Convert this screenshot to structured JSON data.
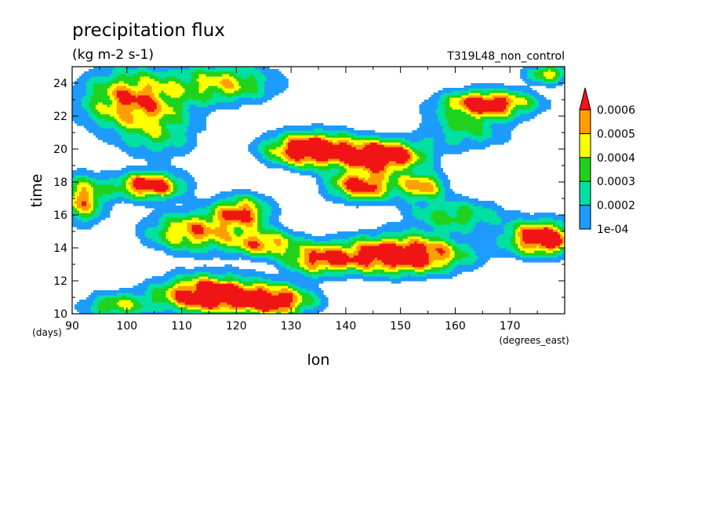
{
  "chart_data": {
    "type": "heatmap",
    "title": "precipitation flux",
    "subtitle": "(kg m-2 s-1)",
    "run_label": "T319L48_non_control",
    "xlabel": "lon",
    "x_units": "(degrees_east)",
    "ylabel": "time",
    "y_units": "(days)",
    "xlim": [
      90,
      180
    ],
    "ylim": [
      10,
      25
    ],
    "x_ticks": [
      90,
      100,
      110,
      120,
      130,
      140,
      150,
      160,
      170
    ],
    "y_ticks": [
      10,
      12,
      14,
      16,
      18,
      20,
      22,
      24
    ],
    "legend_position": "right",
    "colorbar": {
      "levels": [
        0.0001,
        0.0002,
        0.0003,
        0.0004,
        0.0005,
        0.0006
      ],
      "labels": [
        "1e-04",
        "0.0002",
        "0.0003",
        "0.0004",
        "0.0005",
        "0.0006"
      ],
      "colors": [
        "#1e9bff",
        "#00e0a0",
        "#1ed21e",
        "#ffff00",
        "#ff9e00",
        "#f01414"
      ],
      "extend": "max"
    },
    "blobs": [
      {
        "lon": 115,
        "day": 11.2,
        "rlon": 9,
        "rday": 1.1,
        "amp": 0.00085
      },
      {
        "lon": 127,
        "day": 10.8,
        "rlon": 7,
        "rday": 0.9,
        "amp": 0.0007
      },
      {
        "lon": 98,
        "day": 10.5,
        "rlon": 6,
        "rday": 0.8,
        "amp": 0.0004
      },
      {
        "lon": 150,
        "day": 13.6,
        "rlon": 11,
        "rday": 1.1,
        "amp": 0.0009
      },
      {
        "lon": 135,
        "day": 13.3,
        "rlon": 6,
        "rday": 0.9,
        "amp": 0.00055
      },
      {
        "lon": 176,
        "day": 14.6,
        "rlon": 6,
        "rday": 1.0,
        "amp": 0.00085
      },
      {
        "lon": 112,
        "day": 15.0,
        "rlon": 8,
        "rday": 1.2,
        "amp": 0.00055
      },
      {
        "lon": 125,
        "day": 14.3,
        "rlon": 6,
        "rday": 0.8,
        "amp": 0.00055
      },
      {
        "lon": 121,
        "day": 16.2,
        "rlon": 5,
        "rday": 1.0,
        "amp": 0.0006
      },
      {
        "lon": 104,
        "day": 17.8,
        "rlon": 6,
        "rday": 0.8,
        "amp": 0.00075
      },
      {
        "lon": 143,
        "day": 17.8,
        "rlon": 6,
        "rday": 0.9,
        "amp": 0.0007
      },
      {
        "lon": 134,
        "day": 20.0,
        "rlon": 8,
        "rday": 1.0,
        "amp": 0.0009
      },
      {
        "lon": 147,
        "day": 19.6,
        "rlon": 7,
        "rday": 0.9,
        "amp": 0.00085
      },
      {
        "lon": 154,
        "day": 17.8,
        "rlon": 4,
        "rday": 0.8,
        "amp": 0.00055
      },
      {
        "lon": 160,
        "day": 16.0,
        "rlon": 9,
        "rday": 1.0,
        "amp": 0.00035
      },
      {
        "lon": 101,
        "day": 23.0,
        "rlon": 9,
        "rday": 1.8,
        "amp": 0.0006
      },
      {
        "lon": 118,
        "day": 24.0,
        "rlon": 9,
        "rday": 1.2,
        "amp": 0.00045
      },
      {
        "lon": 166,
        "day": 22.8,
        "rlon": 8,
        "rday": 0.8,
        "amp": 0.00075
      },
      {
        "lon": 177,
        "day": 24.6,
        "rlon": 4,
        "rday": 0.6,
        "amp": 0.00045
      },
      {
        "lon": 92,
        "day": 17.0,
        "rlon": 4,
        "rday": 1.4,
        "amp": 0.00055
      },
      {
        "lon": 106,
        "day": 20.8,
        "rlon": 7,
        "rday": 1.5,
        "amp": 0.00025
      },
      {
        "lon": 162,
        "day": 21.2,
        "rlon": 8,
        "rday": 1.2,
        "amp": 0.0003
      }
    ]
  }
}
